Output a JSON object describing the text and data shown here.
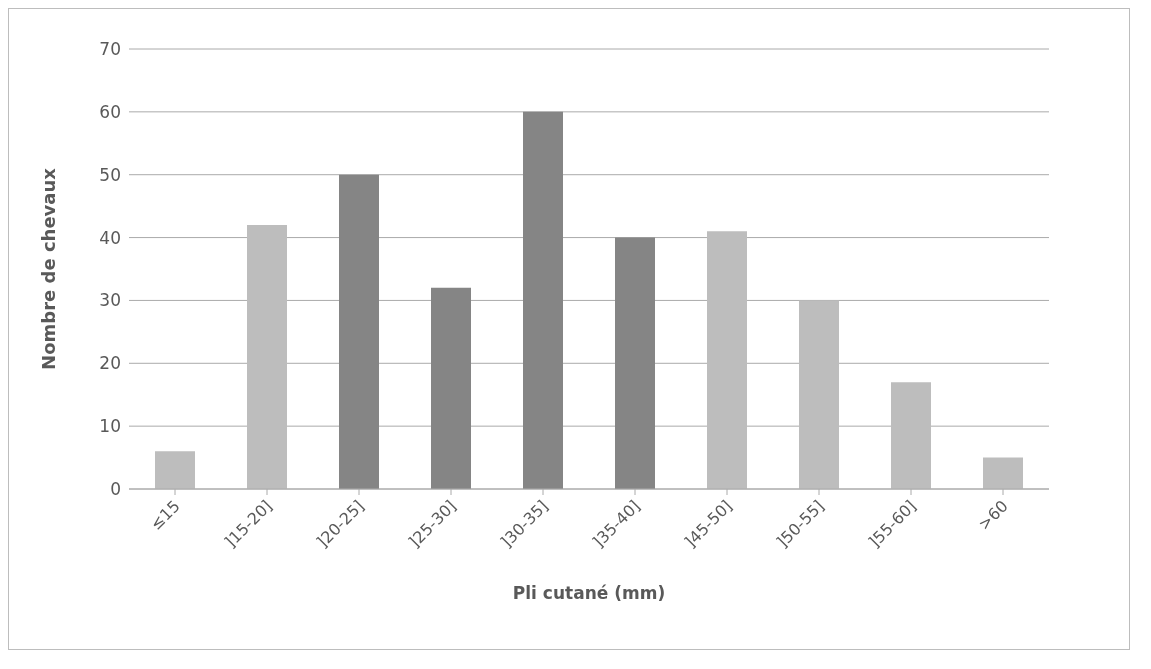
{
  "chart_data": {
    "type": "bar",
    "xlabel": "Pli cutané (mm)",
    "ylabel": "Nombre de chevaux",
    "categories": [
      "≤15",
      "]15-20]",
      "]20-25]",
      "]25-30]",
      "]30-35]",
      "]35-40]",
      "]45-50]",
      "]50-55]",
      "]55-60]",
      ">60"
    ],
    "values": [
      6,
      42,
      50,
      32,
      60,
      40,
      41,
      30,
      17,
      5
    ],
    "colors": [
      "#bdbdbd",
      "#bdbdbd",
      "#858585",
      "#858585",
      "#858585",
      "#858585",
      "#bdbdbd",
      "#bdbdbd",
      "#bdbdbd",
      "#bdbdbd"
    ],
    "ylim": [
      0,
      70
    ],
    "yticks": [
      0,
      10,
      20,
      30,
      40,
      50,
      60,
      70
    ],
    "grid": "y"
  }
}
